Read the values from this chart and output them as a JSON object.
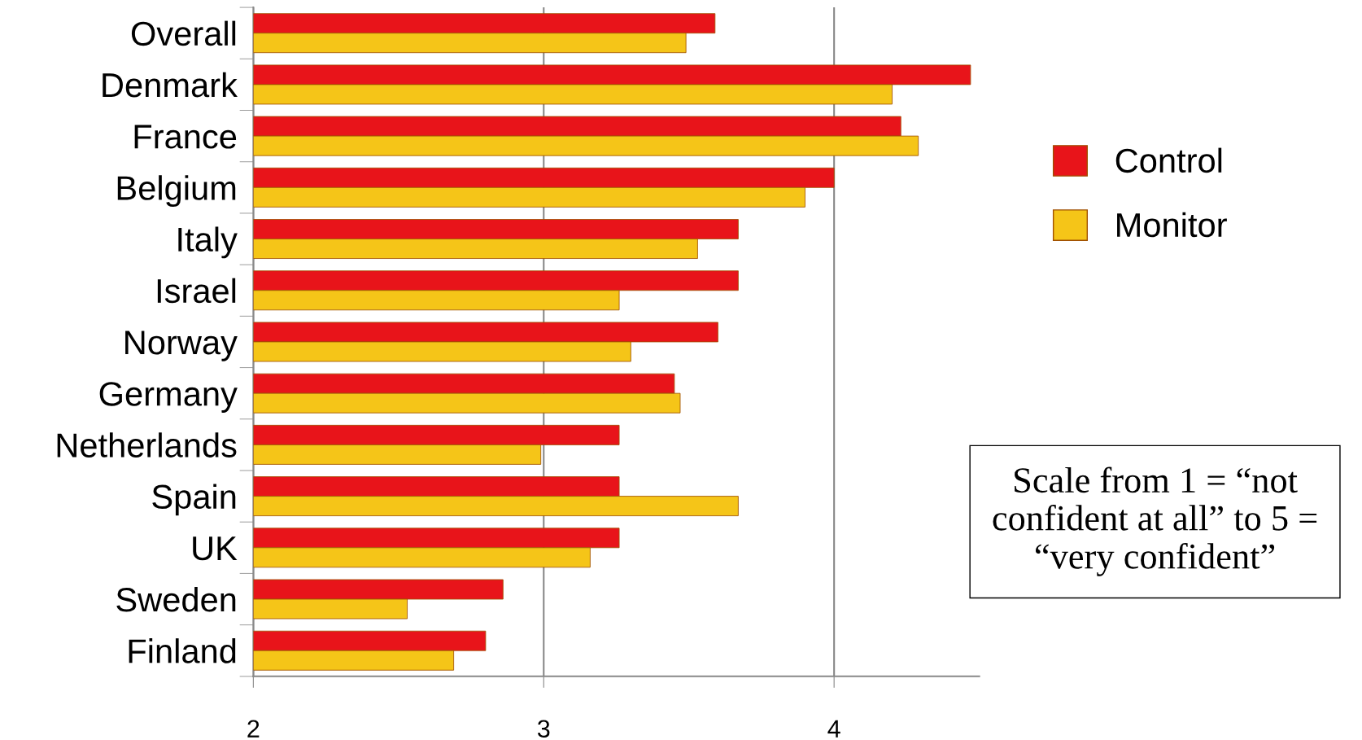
{
  "chart_data": {
    "type": "bar",
    "orientation": "horizontal",
    "categories": [
      "Overall",
      "Denmark",
      "France",
      "Belgium",
      "Italy",
      "Israel",
      "Norway",
      "Germany",
      "Netherlands",
      "Spain",
      "UK",
      "Sweden",
      "Finland"
    ],
    "series": [
      {
        "name": "Control",
        "color": "#e8141a",
        "values": [
          3.59,
          4.47,
          4.23,
          4.0,
          3.67,
          3.67,
          3.6,
          3.45,
          3.26,
          3.26,
          3.26,
          2.86,
          2.8
        ]
      },
      {
        "name": "Monitor",
        "color": "#f5c518",
        "values": [
          3.49,
          4.2,
          4.29,
          3.9,
          3.53,
          3.26,
          3.3,
          3.47,
          2.99,
          3.67,
          3.16,
          2.53,
          2.69
        ]
      }
    ],
    "xlim": [
      2,
      4.5
    ],
    "xticks": [
      2,
      3,
      4
    ],
    "grid": "x",
    "legend": "right",
    "annotations": [
      "Scale from 1 = “not confident at all” to 5 = “very confident”"
    ]
  }
}
